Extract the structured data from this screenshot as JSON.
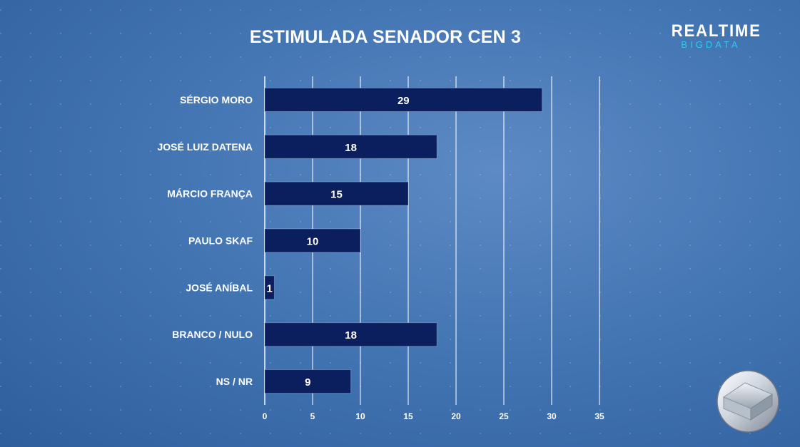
{
  "brand": {
    "top": "REALTIME",
    "bottom": "BIGDATA"
  },
  "chart_data": {
    "type": "bar",
    "orientation": "horizontal",
    "title": "ESTIMULADA SENADOR CEN 3",
    "categories": [
      "SÉRGIO MORO",
      "JOSÉ LUIZ DATENA",
      "MÁRCIO FRANÇA",
      "PAULO SKAF",
      "JOSÉ ANÍBAL",
      "BRANCO / NULO",
      "NS / NR"
    ],
    "values": [
      29,
      18,
      15,
      10,
      1,
      18,
      9
    ],
    "xlim": [
      0,
      35
    ],
    "xticks": [
      0,
      5,
      10,
      15,
      20,
      25,
      30,
      35
    ],
    "grid": true,
    "bar_color": "#0b1f5e",
    "data_labels": true
  }
}
